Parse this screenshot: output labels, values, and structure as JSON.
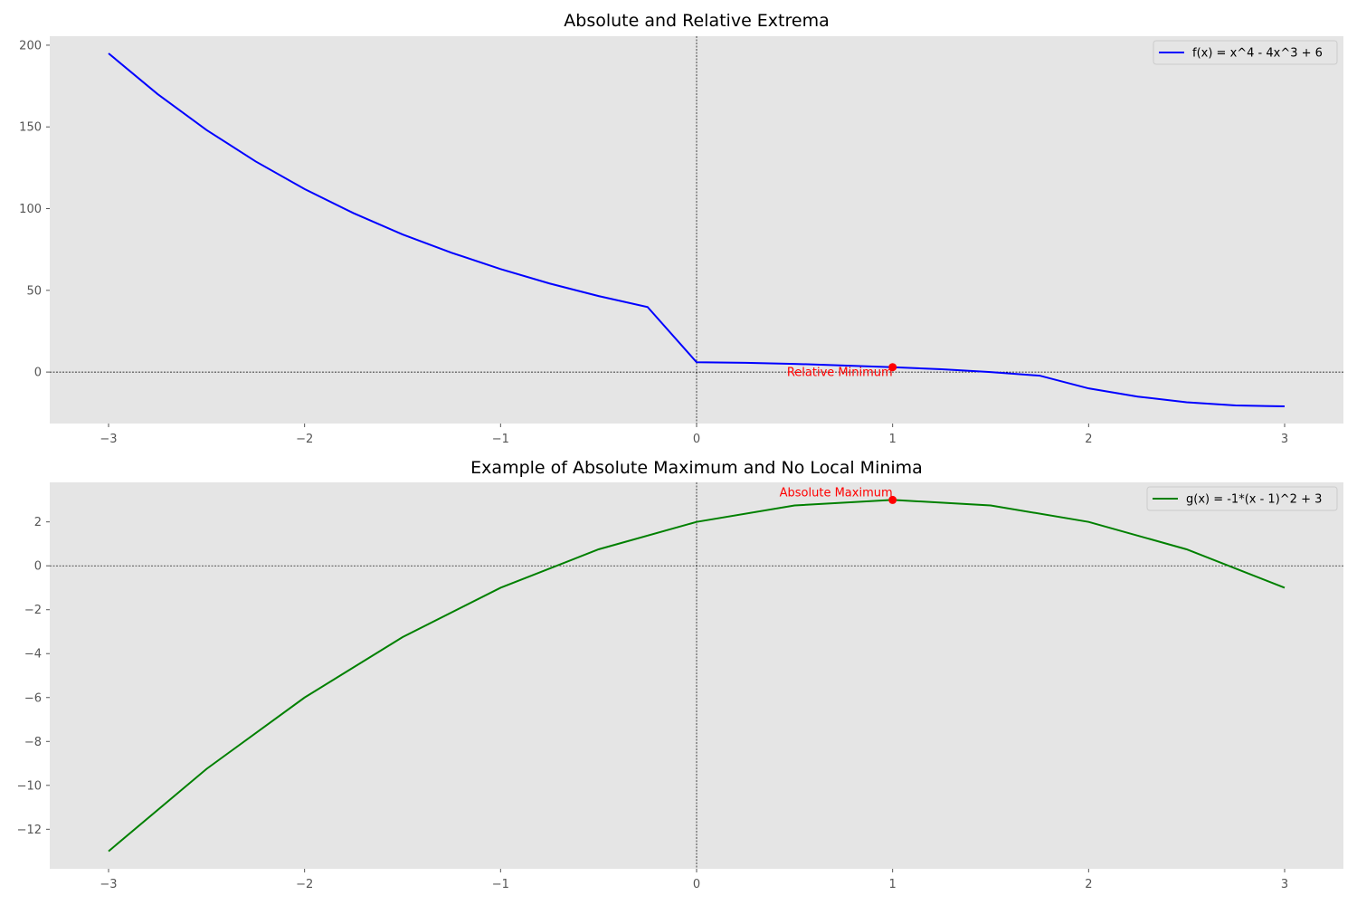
{
  "chart_data": [
    {
      "type": "line",
      "title": "Absolute and Relative Extrema",
      "xlabel": "",
      "ylabel": "",
      "xlim": [
        -3.3,
        3.3
      ],
      "ylim": [
        -31.5,
        205.5
      ],
      "xticks": [
        -3,
        -2,
        -1,
        0,
        1,
        2,
        3
      ],
      "xtick_labels": [
        "−3",
        "−2",
        "−1",
        "0",
        "1",
        "2",
        "3"
      ],
      "yticks": [
        0,
        50,
        100,
        150,
        200
      ],
      "ytick_labels": [
        "0",
        "50",
        "100",
        "150",
        "200"
      ],
      "grid": false,
      "legend": "top-right",
      "reference_lines": {
        "x": 0,
        "y": 0
      },
      "series": [
        {
          "name": "f(x) = x^4 - 4x^3 + 6",
          "color": "#0000ff",
          "x": [
            -3.0,
            -2.75,
            -2.5,
            -2.25,
            -2.0,
            -1.75,
            -1.5,
            -1.25,
            -1.0,
            -0.75,
            -0.5,
            -0.25,
            0.0,
            0.25,
            0.5,
            0.75,
            1.0,
            1.25,
            1.5,
            1.75,
            2.0,
            2.25,
            2.5,
            2.75,
            3.0
          ],
          "y": [
            195,
            170.1,
            148.1,
            128.9,
            112,
            97.2,
            84.2,
            73.0,
            63,
            54.2,
            46.5,
            39.8,
            6,
            5.7,
            5.0,
            4.0,
            3,
            1.7,
            0.0,
            -2.2,
            -10,
            -15.0,
            -18.5,
            -20.4,
            -21
          ]
        }
      ],
      "points": [
        {
          "x": 1,
          "y": 3,
          "label": "Relative Minimum",
          "color": "#ff0000"
        }
      ]
    },
    {
      "type": "line",
      "title": "Example of Absolute Maximum and No Local Minima",
      "xlabel": "",
      "ylabel": "",
      "xlim": [
        -3.3,
        3.3
      ],
      "ylim": [
        -13.8,
        3.8
      ],
      "xticks": [
        -3,
        -2,
        -1,
        0,
        1,
        2,
        3
      ],
      "xtick_labels": [
        "−3",
        "−2",
        "−1",
        "0",
        "1",
        "2",
        "3"
      ],
      "yticks": [
        -12,
        -10,
        -8,
        -6,
        -4,
        -2,
        0,
        2
      ],
      "ytick_labels": [
        "−12",
        "−10",
        "−8",
        "−6",
        "−4",
        "−2",
        "0",
        "2"
      ],
      "grid": false,
      "legend": "top-right",
      "reference_lines": {
        "x": 0,
        "y": 0
      },
      "series": [
        {
          "name": "g(x) = -1*(x - 1)^2 + 3",
          "color": "#008000",
          "x": [
            -3.0,
            -2.5,
            -2.0,
            -1.5,
            -1.0,
            -0.5,
            0.0,
            0.5,
            1.0,
            1.5,
            2.0,
            2.5,
            3.0
          ],
          "y": [
            -13,
            -9.25,
            -6,
            -3.25,
            -1,
            0.75,
            2,
            2.75,
            3,
            2.75,
            2,
            0.75,
            -1
          ]
        }
      ],
      "points": [
        {
          "x": 1,
          "y": 3,
          "label": "Absolute Maximum",
          "color": "#ff0000"
        }
      ]
    }
  ]
}
